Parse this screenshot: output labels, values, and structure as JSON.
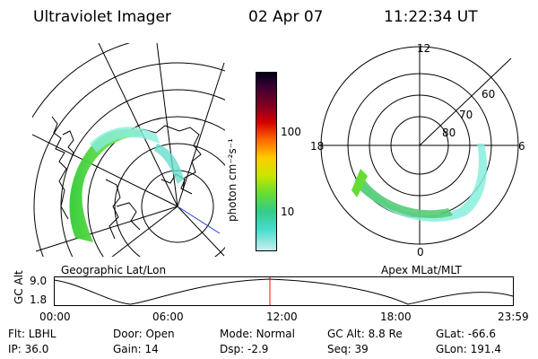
{
  "header": {
    "title": "Ultraviolet Imager",
    "date": "02 Apr 07",
    "time": "11:22:34 UT"
  },
  "colorbar": {
    "label": "photon cm⁻²s⁻¹",
    "ticks": [
      "100",
      "10"
    ]
  },
  "polar_plot": {
    "hour_labels": {
      "top": "12",
      "left": "18",
      "right": "6",
      "bottom": "0"
    },
    "lat_labels": [
      "60",
      "70",
      "80"
    ]
  },
  "panel_labels": {
    "geo": "Geographic Lat/Lon",
    "apex": "Apex MLat/MLT"
  },
  "gc_alt_plot": {
    "ylabel": "GC Alt",
    "yticks": [
      "9.0",
      "1.8"
    ],
    "xticks": [
      "00:00",
      "06:00",
      "12:00",
      "18:00",
      "23:59"
    ],
    "cursor_color": "#ff0000"
  },
  "footer": {
    "row1": [
      {
        "label": "Flt:",
        "value": "LBHL"
      },
      {
        "label": "Door:",
        "value": "Open"
      },
      {
        "label": "Mode:",
        "value": "Normal"
      },
      {
        "label": "GC Alt:",
        "value": "8.8 Re"
      },
      {
        "label": "GLat:",
        "value": "-66.6"
      }
    ],
    "row2": [
      {
        "label": "IP:",
        "value": "36.0"
      },
      {
        "label": "Gain:",
        "value": "14"
      },
      {
        "label": "Dsp:",
        "value": "-2.9"
      },
      {
        "label": "Seq:",
        "value": "39"
      },
      {
        "label": "GLon:",
        "value": "191.4"
      }
    ]
  }
}
